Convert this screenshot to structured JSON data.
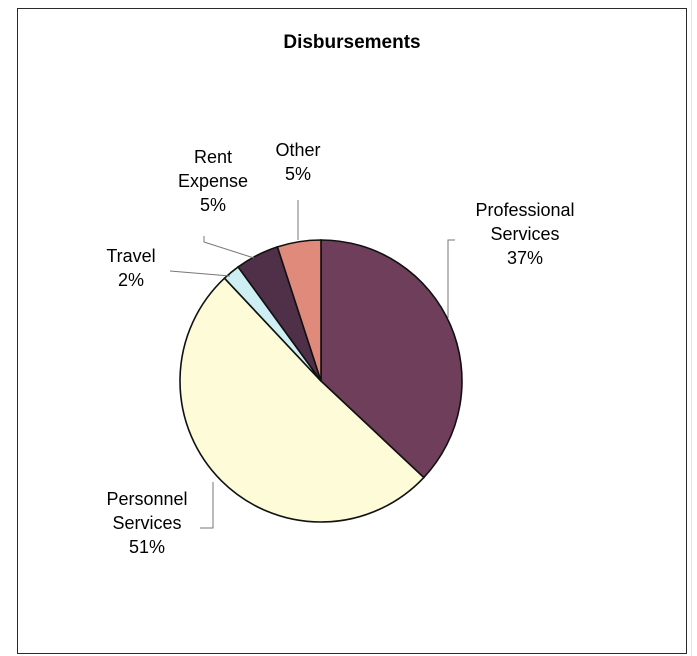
{
  "chart_data": {
    "type": "pie",
    "title": "Disbursements",
    "slices": [
      {
        "label_lines": [
          "Professional",
          "Services"
        ],
        "percent_label": "37%",
        "value": 37,
        "color": "#6e3e5a"
      },
      {
        "label_lines": [
          "Personnel",
          "Services"
        ],
        "percent_label": "51%",
        "value": 51,
        "color": "#fdfbd8"
      },
      {
        "label_lines": [
          "Travel"
        ],
        "percent_label": "2%",
        "value": 2,
        "color": "#cdeef3"
      },
      {
        "label_lines": [
          "Rent",
          "Expense"
        ],
        "percent_label": "5%",
        "value": 5,
        "color": "#4f3048"
      },
      {
        "label_lines": [
          "Other"
        ],
        "percent_label": "5%",
        "value": 5,
        "color": "#e08a7c"
      }
    ],
    "legend": "none",
    "data_labels": "outside-with-leaders"
  }
}
